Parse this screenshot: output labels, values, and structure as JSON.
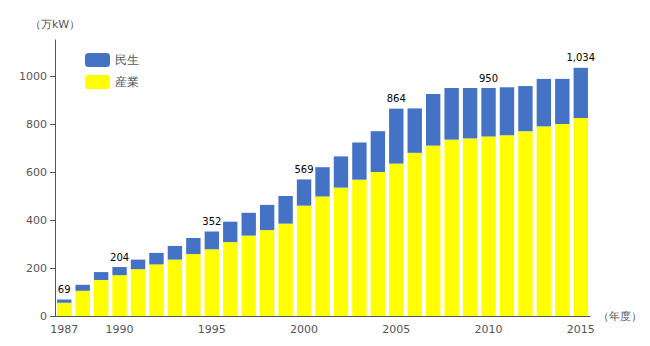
{
  "chart_data": {
    "type": "bar",
    "categories": [
      "1987",
      null,
      null,
      "1990",
      null,
      null,
      null,
      null,
      "1995",
      null,
      null,
      null,
      null,
      "2000",
      null,
      null,
      null,
      null,
      "2005",
      null,
      null,
      null,
      null,
      "2010",
      null,
      null,
      null,
      null,
      "2015"
    ],
    "series": [
      {
        "name": "産業",
        "color": "#FFFF00",
        "values": [
          55,
          105,
          150,
          170,
          195,
          215,
          235,
          258,
          278,
          308,
          335,
          358,
          385,
          460,
          498,
          535,
          568,
          600,
          635,
          680,
          710,
          735,
          740,
          748,
          753,
          770,
          790,
          800,
          825
        ]
      },
      {
        "name": "民生",
        "color": "#4472C4",
        "values": [
          14,
          25,
          33,
          34,
          40,
          48,
          57,
          67,
          74,
          85,
          95,
          105,
          115,
          109,
          122,
          130,
          155,
          170,
          229,
          185,
          215,
          215,
          210,
          202,
          200,
          188,
          198,
          188,
          209
        ]
      }
    ],
    "stacked": true,
    "ylim": [
      0,
      1150
    ],
    "yticks": [
      0,
      200,
      400,
      600,
      800,
      1000
    ],
    "ylabel": "（万kW）",
    "xlabel": "（年度）",
    "legend": "upper left",
    "grid": false,
    "annotations": [
      {
        "x": "1987",
        "text": "69"
      },
      {
        "x": "1990",
        "text": "204"
      },
      {
        "x": "1995",
        "text": "352"
      },
      {
        "x": "2000",
        "text": "569"
      },
      {
        "x": "2005",
        "text": "864"
      },
      {
        "x": "2010",
        "text": "950"
      },
      {
        "x": "2015",
        "text": "1,034"
      }
    ]
  }
}
